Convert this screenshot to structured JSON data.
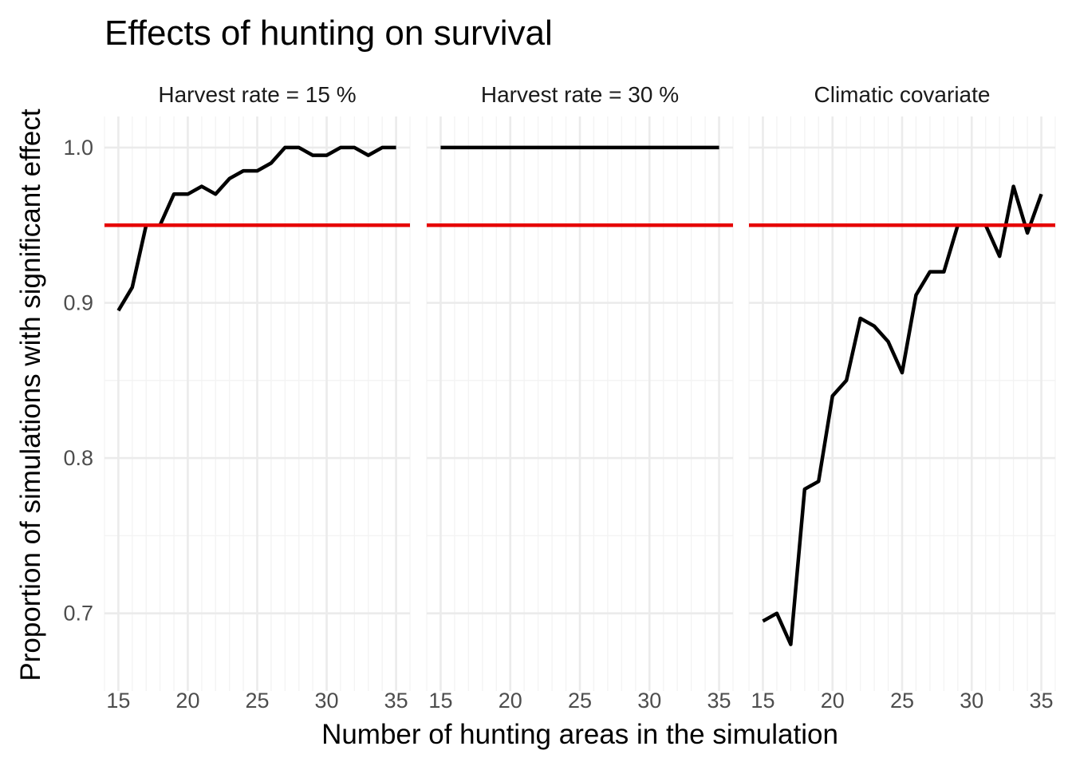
{
  "chart_data": {
    "type": "line",
    "title": "Effects of hunting on survival",
    "xlabel": "Number of hunting areas in the simulation",
    "ylabel": "Proportion of simulations with significant effect",
    "xlim": [
      14,
      36
    ],
    "ylim": [
      0.65,
      1.02
    ],
    "x_ticks": [
      "15",
      "20",
      "25",
      "30",
      "35"
    ],
    "y_ticks": [
      "0.7",
      "0.8",
      "0.9",
      "1.0"
    ],
    "reference_line": {
      "y": 0.95,
      "color": "#e60000"
    },
    "series_color": "#000000",
    "grid": true,
    "legend": "none",
    "panels": [
      {
        "label": "Harvest rate = 15 %",
        "x": [
          15,
          16,
          17,
          18,
          19,
          20,
          21,
          22,
          23,
          24,
          25,
          26,
          27,
          28,
          29,
          30,
          31,
          32,
          33,
          34,
          35
        ],
        "values": [
          0.895,
          0.91,
          0.95,
          0.95,
          0.97,
          0.97,
          0.975,
          0.97,
          0.98,
          0.985,
          0.985,
          0.99,
          1.0,
          1.0,
          0.995,
          0.995,
          1.0,
          1.0,
          0.995,
          1.0,
          1.0
        ]
      },
      {
        "label": "Harvest rate = 30 %",
        "x": [
          15,
          16,
          17,
          18,
          19,
          20,
          21,
          22,
          23,
          24,
          25,
          26,
          27,
          28,
          29,
          30,
          31,
          32,
          33,
          34,
          35
        ],
        "values": [
          1.0,
          1.0,
          1.0,
          1.0,
          1.0,
          1.0,
          1.0,
          1.0,
          1.0,
          1.0,
          1.0,
          1.0,
          1.0,
          1.0,
          1.0,
          1.0,
          1.0,
          1.0,
          1.0,
          1.0,
          1.0
        ]
      },
      {
        "label": "Climatic covariate",
        "x": [
          15,
          16,
          17,
          18,
          19,
          20,
          21,
          22,
          23,
          24,
          25,
          26,
          27,
          28,
          29,
          30,
          31,
          32,
          33,
          34,
          35
        ],
        "values": [
          0.695,
          0.7,
          0.68,
          0.78,
          0.785,
          0.84,
          0.85,
          0.89,
          0.885,
          0.875,
          0.855,
          0.905,
          0.92,
          0.92,
          0.95,
          0.95,
          0.95,
          0.93,
          0.975,
          0.945,
          0.97
        ]
      }
    ]
  }
}
